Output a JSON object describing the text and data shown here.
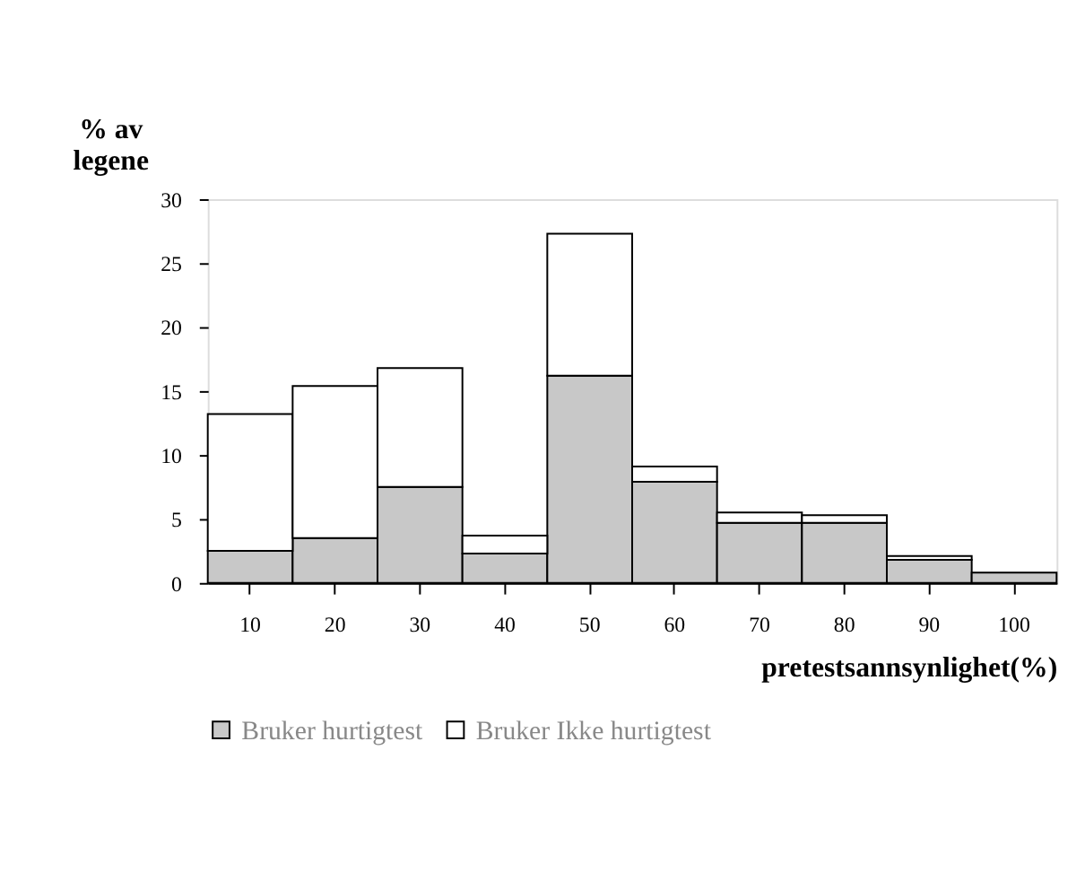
{
  "chart_data": {
    "type": "bar",
    "stacked": true,
    "ylabel": "% av\nlegene",
    "xlabel": "pretestsannsynlighet(%)",
    "categories": [
      "10",
      "20",
      "30",
      "40",
      "50",
      "60",
      "70",
      "80",
      "90",
      "100"
    ],
    "series": [
      {
        "name": "Bruker hurtigtest",
        "color": "#c8c8c8",
        "values": [
          2.5,
          3.5,
          7.5,
          2.3,
          16.2,
          7.9,
          4.7,
          4.7,
          1.8,
          0.8
        ]
      },
      {
        "name": "Bruker Ikke hurtigtest",
        "color": "#ffffff",
        "values": [
          10.7,
          11.9,
          9.3,
          1.4,
          11.1,
          1.2,
          0.8,
          0.6,
          0.3,
          0
        ]
      }
    ],
    "ylim": [
      0,
      30
    ],
    "yticks": [
      0,
      5,
      10,
      15,
      20,
      25,
      30
    ],
    "grid": false,
    "legend": "bottom"
  }
}
